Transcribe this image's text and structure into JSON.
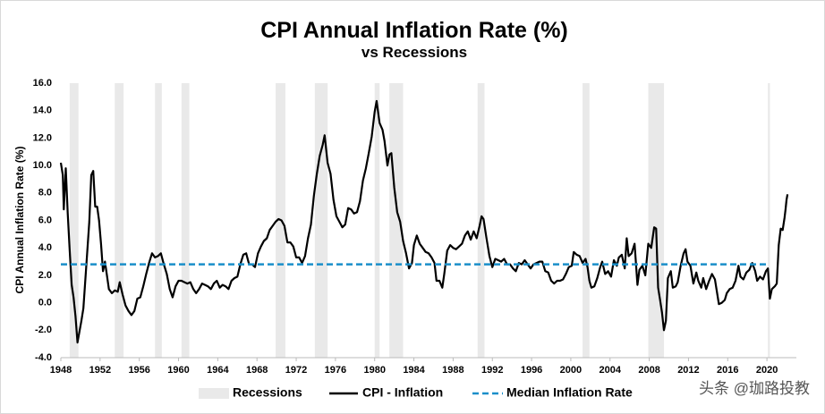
{
  "chart_data": {
    "type": "line",
    "title": "CPI Annual Inflation Rate (%)",
    "subtitle": "vs Recessions",
    "y_label": "CPI Annual Inflation Rate (%)",
    "xlim": [
      1948,
      2023
    ],
    "xticks": [
      1948,
      1952,
      1956,
      1960,
      1964,
      1968,
      1972,
      1976,
      1980,
      1984,
      1988,
      1992,
      1996,
      2000,
      2004,
      2008,
      2012,
      2016,
      2020
    ],
    "ylim": [
      -4,
      16
    ],
    "yticks": [
      {
        "value": -4,
        "label": "-4.0"
      },
      {
        "value": -2,
        "label": "-2.0"
      },
      {
        "value": 0,
        "label": "0.0"
      },
      {
        "value": 2,
        "label": "2.0"
      },
      {
        "value": 4,
        "label": "4.0"
      },
      {
        "value": 6,
        "label": "6.0"
      },
      {
        "value": 8,
        "label": "8.0"
      },
      {
        "value": 10,
        "label": "10.0"
      },
      {
        "value": 12,
        "label": "12.0"
      },
      {
        "value": 14,
        "label": "14.0"
      },
      {
        "value": 16,
        "label": "16.0"
      }
    ],
    "grid": false,
    "recessions": {
      "name": "Recessions",
      "color": "#e9e9e9",
      "spans": [
        [
          1948.9,
          1949.8
        ],
        [
          1953.5,
          1954.4
        ],
        [
          1957.6,
          1958.3
        ],
        [
          1960.3,
          1961.1
        ],
        [
          1969.9,
          1970.9
        ],
        [
          1973.9,
          1975.2
        ],
        [
          1980.0,
          1980.5
        ],
        [
          1981.5,
          1982.9
        ],
        [
          1990.5,
          1991.2
        ],
        [
          2001.2,
          2001.9
        ],
        [
          2007.9,
          2009.5
        ],
        [
          2020.1,
          2020.3
        ]
      ]
    },
    "median": {
      "name": "Median Inflation Rate",
      "color": "#1a8fc9",
      "value": 2.8
    },
    "x": [
      1948.0,
      1948.2,
      1948.3,
      1948.5,
      1948.7,
      1948.9,
      1949.1,
      1949.3,
      1949.5,
      1949.7,
      1949.9,
      1950.1,
      1950.3,
      1950.5,
      1950.7,
      1950.9,
      1951.1,
      1951.3,
      1951.5,
      1951.7,
      1951.9,
      1952.1,
      1952.3,
      1952.5,
      1952.7,
      1952.9,
      1953.2,
      1953.5,
      1953.8,
      1954.0,
      1954.3,
      1954.6,
      1954.9,
      1955.2,
      1955.5,
      1955.8,
      1956.1,
      1956.4,
      1956.7,
      1957.0,
      1957.3,
      1957.6,
      1957.9,
      1958.2,
      1958.5,
      1958.8,
      1959.1,
      1959.4,
      1959.7,
      1960.0,
      1960.3,
      1960.6,
      1960.9,
      1961.2,
      1961.5,
      1961.8,
      1962.1,
      1962.4,
      1962.7,
      1963.0,
      1963.3,
      1963.6,
      1963.9,
      1964.2,
      1964.5,
      1964.8,
      1965.1,
      1965.4,
      1965.7,
      1966.0,
      1966.3,
      1966.6,
      1966.9,
      1967.2,
      1967.5,
      1967.8,
      1968.1,
      1968.4,
      1968.7,
      1969.0,
      1969.3,
      1969.6,
      1969.9,
      1970.2,
      1970.5,
      1970.8,
      1971.1,
      1971.4,
      1971.7,
      1972.0,
      1972.3,
      1972.6,
      1972.9,
      1973.2,
      1973.5,
      1973.8,
      1974.1,
      1974.4,
      1974.7,
      1974.9,
      1975.2,
      1975.5,
      1975.8,
      1976.1,
      1976.4,
      1976.7,
      1977.0,
      1977.3,
      1977.6,
      1977.9,
      1978.2,
      1978.5,
      1978.8,
      1979.1,
      1979.4,
      1979.7,
      1980.0,
      1980.2,
      1980.5,
      1980.8,
      1981.0,
      1981.3,
      1981.5,
      1981.7,
      1982.0,
      1982.3,
      1982.6,
      1982.9,
      1983.2,
      1983.5,
      1983.8,
      1984.0,
      1984.3,
      1984.6,
      1984.9,
      1985.2,
      1985.5,
      1985.8,
      1986.1,
      1986.3,
      1986.6,
      1986.9,
      1987.1,
      1987.4,
      1987.7,
      1988.0,
      1988.3,
      1988.6,
      1988.9,
      1989.2,
      1989.5,
      1989.8,
      1990.1,
      1990.4,
      1990.7,
      1990.9,
      1991.1,
      1991.4,
      1991.7,
      1992.0,
      1992.3,
      1992.6,
      1992.9,
      1993.2,
      1993.5,
      1993.8,
      1994.1,
      1994.4,
      1994.7,
      1995.0,
      1995.3,
      1995.6,
      1995.9,
      1996.2,
      1996.5,
      1996.8,
      1997.1,
      1997.4,
      1997.7,
      1998.0,
      1998.3,
      1998.6,
      1998.9,
      1999.2,
      1999.5,
      1999.8,
      2000.1,
      2000.3,
      2000.6,
      2000.9,
      2001.2,
      2001.5,
      2001.7,
      2001.9,
      2002.1,
      2002.4,
      2002.7,
      2003.0,
      2003.2,
      2003.5,
      2003.8,
      2004.1,
      2004.4,
      2004.7,
      2004.9,
      2005.2,
      2005.5,
      2005.7,
      2005.9,
      2006.2,
      2006.5,
      2006.8,
      2007.0,
      2007.3,
      2007.6,
      2007.9,
      2008.2,
      2008.5,
      2008.7,
      2008.9,
      2009.1,
      2009.3,
      2009.5,
      2009.7,
      2009.9,
      2010.2,
      2010.4,
      2010.7,
      2010.9,
      2011.2,
      2011.5,
      2011.7,
      2011.9,
      2012.2,
      2012.5,
      2012.8,
      2013.0,
      2013.3,
      2013.5,
      2013.8,
      2014.1,
      2014.4,
      2014.7,
      2014.9,
      2015.1,
      2015.4,
      2015.7,
      2015.9,
      2016.2,
      2016.5,
      2016.8,
      2017.1,
      2017.3,
      2017.6,
      2017.9,
      2018.2,
      2018.5,
      2018.8,
      2019.0,
      2019.3,
      2019.6,
      2019.9,
      2020.1,
      2020.3,
      2020.5,
      2020.8,
      2021.0,
      2021.2,
      2021.4,
      2021.6,
      2021.8,
      2021.9,
      2022.0,
      2022.1
    ],
    "series": [
      {
        "name": "CPI - Inflation",
        "color": "#000000",
        "values": [
          10.2,
          9.3,
          6.8,
          9.8,
          6.5,
          3.8,
          1.3,
          0.4,
          -1.0,
          -2.9,
          -2.1,
          -1.3,
          -0.4,
          1.7,
          3.8,
          5.9,
          9.3,
          9.6,
          7.0,
          7.0,
          6.0,
          4.3,
          2.3,
          3.0,
          2.0,
          1.0,
          0.7,
          0.9,
          0.8,
          1.5,
          0.6,
          -0.2,
          -0.6,
          -0.9,
          -0.6,
          0.3,
          0.4,
          1.2,
          2.1,
          2.9,
          3.6,
          3.3,
          3.4,
          3.6,
          2.8,
          2.1,
          1.0,
          0.4,
          1.2,
          1.6,
          1.6,
          1.5,
          1.4,
          1.5,
          1.0,
          0.7,
          1.0,
          1.4,
          1.3,
          1.2,
          1.0,
          1.4,
          1.6,
          1.1,
          1.3,
          1.2,
          1.0,
          1.6,
          1.8,
          1.9,
          2.8,
          3.5,
          3.6,
          2.8,
          2.8,
          2.6,
          3.6,
          4.1,
          4.5,
          4.7,
          5.3,
          5.6,
          5.9,
          6.1,
          6.0,
          5.6,
          4.4,
          4.4,
          4.1,
          3.3,
          3.3,
          2.9,
          3.4,
          4.7,
          5.7,
          7.8,
          9.4,
          10.7,
          11.5,
          12.2,
          10.2,
          9.4,
          7.5,
          6.3,
          5.9,
          5.5,
          5.7,
          6.9,
          6.8,
          6.5,
          6.6,
          7.4,
          8.9,
          9.8,
          10.9,
          12.1,
          13.9,
          14.7,
          13.1,
          12.6,
          11.8,
          10.0,
          10.8,
          10.9,
          8.4,
          6.6,
          5.9,
          4.5,
          3.6,
          2.5,
          2.9,
          4.2,
          4.9,
          4.3,
          4.0,
          3.7,
          3.6,
          3.3,
          2.9,
          1.6,
          1.6,
          1.1,
          2.1,
          3.8,
          4.2,
          4.0,
          3.9,
          4.1,
          4.3,
          4.9,
          5.2,
          4.6,
          5.2,
          4.7,
          5.6,
          6.3,
          6.1,
          4.7,
          3.4,
          2.6,
          3.2,
          3.1,
          3.0,
          3.2,
          2.8,
          2.8,
          2.5,
          2.3,
          2.9,
          2.8,
          3.1,
          2.8,
          2.5,
          2.8,
          2.9,
          3.0,
          3.0,
          2.3,
          2.2,
          1.6,
          1.4,
          1.6,
          1.6,
          1.7,
          2.1,
          2.6,
          2.7,
          3.7,
          3.5,
          3.4,
          2.9,
          3.2,
          2.6,
          1.6,
          1.1,
          1.2,
          1.8,
          2.6,
          3.0,
          2.1,
          2.3,
          1.9,
          3.1,
          2.7,
          3.3,
          3.5,
          2.5,
          4.7,
          3.4,
          3.6,
          4.3,
          1.3,
          2.4,
          2.7,
          2.0,
          4.3,
          4.0,
          5.5,
          5.4,
          1.1,
          0.2,
          -0.7,
          -2.0,
          -1.3,
          1.8,
          2.3,
          1.1,
          1.2,
          1.5,
          2.7,
          3.6,
          3.9,
          3.0,
          2.7,
          1.4,
          2.2,
          1.6,
          1.1,
          1.8,
          1.0,
          1.6,
          2.1,
          1.7,
          0.8,
          -0.1,
          0.0,
          0.2,
          0.7,
          1.0,
          1.1,
          1.6,
          2.7,
          1.9,
          1.7,
          2.2,
          2.4,
          2.9,
          2.3,
          1.6,
          1.9,
          1.7,
          2.3,
          2.5,
          0.3,
          1.0,
          1.2,
          1.4,
          4.2,
          5.4,
          5.3,
          6.2,
          6.8,
          7.5,
          7.9
        ]
      }
    ]
  },
  "watermark": "头条 @珈路投教"
}
